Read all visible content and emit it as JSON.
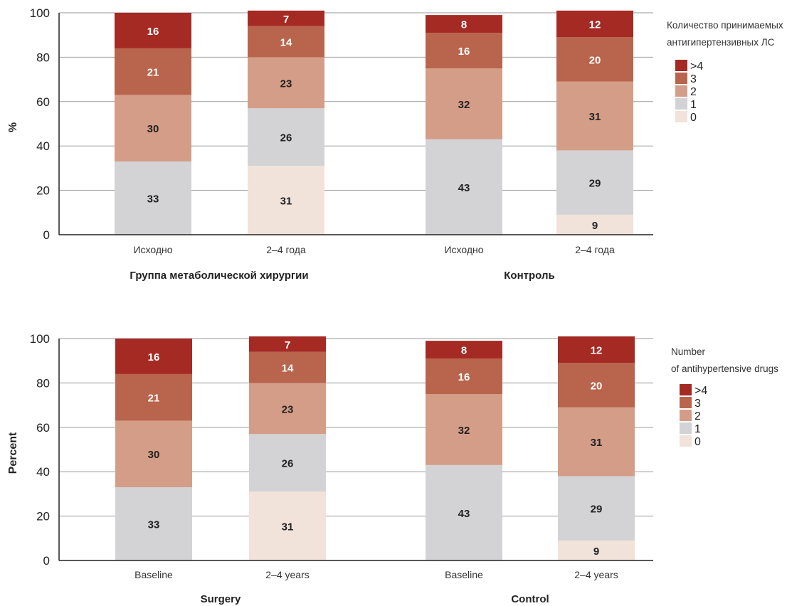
{
  "colors": {
    "0": "#f1e3da",
    "1": "#d3d3d5",
    "2": "#d49d87",
    "3": "#b9644c",
    ">4": "#a52a24",
    "grid": "#9a9a9a",
    "axis": "#222222"
  },
  "chart_data": [
    {
      "type": "bar",
      "stacked": true,
      "ylabel": "%",
      "ylim": [
        0,
        100
      ],
      "yticks": [
        "0",
        "20",
        "40",
        "60",
        "80",
        "100"
      ],
      "grid": true,
      "legend_position": "right",
      "legend_title": [
        "Количество принимаемых",
        "антигипертензивных ЛС"
      ],
      "legend": [
        ">4",
        "3",
        "2",
        "1",
        "0"
      ],
      "groups": [
        {
          "label": "Группа метаболической хирургии",
          "categories": [
            "Исходно",
            "2–4 года"
          ]
        },
        {
          "label": "Контроль",
          "categories": [
            "Исходно",
            "2–4 года"
          ]
        }
      ],
      "categories": [
        "Исходно",
        "2–4 года",
        "Исходно",
        "2–4 года"
      ],
      "series": [
        {
          "name": "0",
          "values": [
            0,
            31,
            0,
            9
          ]
        },
        {
          "name": "1",
          "values": [
            33,
            26,
            43,
            29
          ]
        },
        {
          "name": "2",
          "values": [
            30,
            23,
            32,
            31
          ]
        },
        {
          "name": "3",
          "values": [
            21,
            14,
            16,
            20
          ]
        },
        {
          "name": ">4",
          "values": [
            16,
            7,
            8,
            12
          ]
        }
      ]
    },
    {
      "type": "bar",
      "stacked": true,
      "ylabel": "Percent",
      "ylim": [
        0,
        100
      ],
      "yticks": [
        "0",
        "20",
        "40",
        "60",
        "80",
        "100"
      ],
      "grid": true,
      "legend_position": "right",
      "legend_title": [
        "Number",
        "of antihypertensive drugs"
      ],
      "legend": [
        ">4",
        "3",
        "2",
        "1",
        "0"
      ],
      "groups": [
        {
          "label": "Surgery",
          "categories": [
            "Baseline",
            "2–4 years"
          ]
        },
        {
          "label": "Control",
          "categories": [
            "Baseline",
            "2–4 years"
          ]
        }
      ],
      "categories": [
        "Baseline",
        "2–4 years",
        "Baseline",
        "2–4 years"
      ],
      "series": [
        {
          "name": "0",
          "values": [
            0,
            31,
            0,
            9
          ]
        },
        {
          "name": "1",
          "values": [
            33,
            26,
            43,
            29
          ]
        },
        {
          "name": "2",
          "values": [
            30,
            23,
            32,
            31
          ]
        },
        {
          "name": "3",
          "values": [
            21,
            14,
            16,
            20
          ]
        },
        {
          "name": ">4",
          "values": [
            16,
            7,
            8,
            12
          ]
        }
      ]
    }
  ]
}
